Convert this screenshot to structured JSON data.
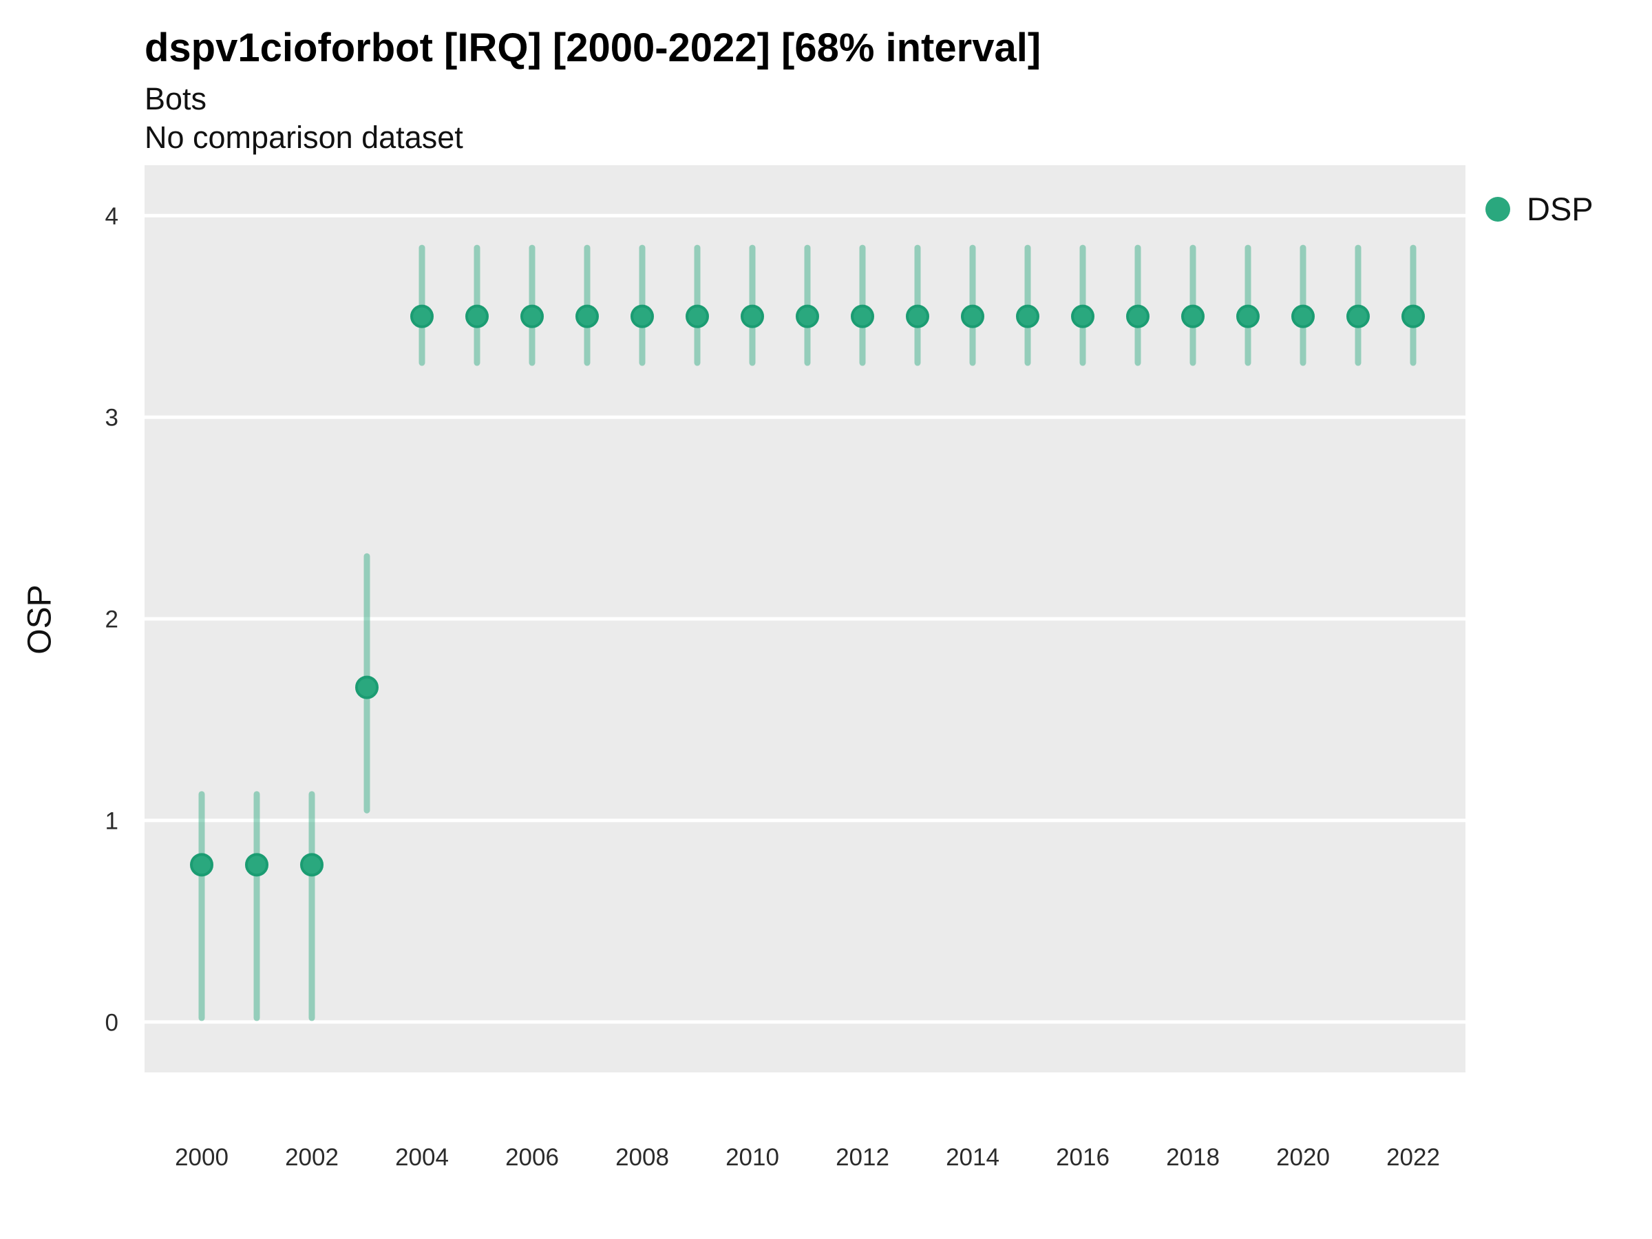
{
  "header": {
    "title": "dspv1cioforbot [IRQ] [2000-2022] [68% interval]",
    "subtitle": "Bots",
    "note": "No comparison dataset"
  },
  "legend": {
    "items": [
      {
        "label": "DSP",
        "color": "#2AA87E"
      }
    ]
  },
  "colors": {
    "panel_background": "#EBEBEB",
    "gridline": "#FFFFFF",
    "point_fill": "#2AA87E",
    "point_stroke": "#1B9C72",
    "interval_stroke": "#2AA87E",
    "interval_opacity": 0.45,
    "tick_label": "#2b2b2b"
  },
  "chart_data": {
    "type": "pointrange",
    "title": "dspv1cioforbot [IRQ] [2000-2022] [68% interval]",
    "subtitle": "Bots",
    "note": "No comparison dataset",
    "xlabel": "",
    "ylabel": "OSP",
    "interval_level": "68%",
    "grid": "major horizontal+vertical white gridlines on gray panel, majors at integer y",
    "legend_position": "right",
    "ylim": [
      -0.25,
      4.25
    ],
    "y_ticks": [
      0,
      1,
      2,
      3,
      4
    ],
    "x_tick_labels": [
      2000,
      2002,
      2004,
      2006,
      2008,
      2010,
      2012,
      2014,
      2016,
      2018,
      2020,
      2022
    ],
    "series": [
      {
        "name": "DSP",
        "x": [
          2000,
          2001,
          2002,
          2003,
          2004,
          2005,
          2006,
          2007,
          2008,
          2009,
          2010,
          2011,
          2012,
          2013,
          2014,
          2015,
          2016,
          2017,
          2018,
          2019,
          2020,
          2021,
          2022
        ],
        "mid": [
          0.78,
          0.78,
          0.78,
          1.66,
          3.5,
          3.5,
          3.5,
          3.5,
          3.5,
          3.5,
          3.5,
          3.5,
          3.5,
          3.5,
          3.5,
          3.5,
          3.5,
          3.5,
          3.5,
          3.5,
          3.5,
          3.5,
          3.5
        ],
        "lo": [
          0.02,
          0.02,
          0.02,
          1.05,
          3.27,
          3.27,
          3.27,
          3.27,
          3.27,
          3.27,
          3.27,
          3.27,
          3.27,
          3.27,
          3.27,
          3.27,
          3.27,
          3.27,
          3.27,
          3.27,
          3.27,
          3.27,
          3.27
        ],
        "hi": [
          1.13,
          1.13,
          1.13,
          2.31,
          3.84,
          3.84,
          3.84,
          3.84,
          3.84,
          3.84,
          3.84,
          3.84,
          3.84,
          3.84,
          3.84,
          3.84,
          3.84,
          3.84,
          3.84,
          3.84,
          3.84,
          3.84,
          3.84
        ]
      }
    ]
  }
}
